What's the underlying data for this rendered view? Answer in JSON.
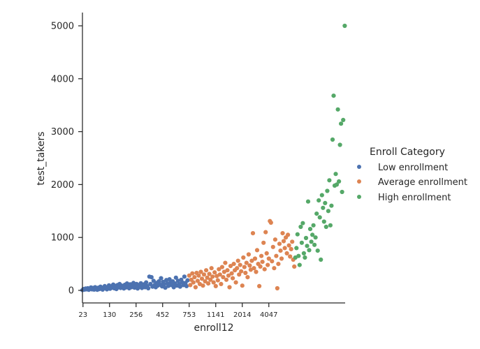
{
  "chart_data": {
    "type": "scatter",
    "title": "",
    "xlabel": "enroll12",
    "ylabel": "test_takers",
    "x_tick_labels": [
      "23",
      "130",
      "256",
      "452",
      "753",
      "1141",
      "2014",
      "4047"
    ],
    "y_ticks": [
      0,
      1000,
      2000,
      3000,
      4000,
      5000
    ],
    "ylim": [
      -200,
      5250
    ],
    "legend": {
      "title": "Enroll Category",
      "placement": "right"
    },
    "series": [
      {
        "name": "Low enrollment",
        "color": "#4c72b0",
        "points": [
          {
            "rank": 0,
            "y": 5
          },
          {
            "rank": 2,
            "y": 25
          },
          {
            "rank": 4,
            "y": 15
          },
          {
            "rank": 6,
            "y": 35
          },
          {
            "rank": 8,
            "y": 20
          },
          {
            "rank": 10,
            "y": 40
          },
          {
            "rank": 12,
            "y": 10
          },
          {
            "rank": 14,
            "y": 30
          },
          {
            "rank": 16,
            "y": 55
          },
          {
            "rank": 18,
            "y": 20
          },
          {
            "rank": 20,
            "y": 45
          },
          {
            "rank": 22,
            "y": 15
          },
          {
            "rank": 24,
            "y": 60
          },
          {
            "rank": 26,
            "y": 30
          },
          {
            "rank": 28,
            "y": 10
          },
          {
            "rank": 30,
            "y": 50
          },
          {
            "rank": 32,
            "y": 25
          },
          {
            "rank": 34,
            "y": 70
          },
          {
            "rank": 36,
            "y": 35
          },
          {
            "rank": 38,
            "y": 15
          },
          {
            "rank": 40,
            "y": 55
          },
          {
            "rank": 42,
            "y": 80
          },
          {
            "rank": 44,
            "y": 40
          },
          {
            "rank": 46,
            "y": 20
          },
          {
            "rank": 48,
            "y": 65
          },
          {
            "rank": 50,
            "y": 95
          },
          {
            "rank": 52,
            "y": 30
          },
          {
            "rank": 54,
            "y": 75
          },
          {
            "rank": 56,
            "y": 50
          },
          {
            "rank": 58,
            "y": 110
          },
          {
            "rank": 60,
            "y": 40
          },
          {
            "rank": 62,
            "y": 85
          },
          {
            "rank": 64,
            "y": 25
          },
          {
            "rank": 66,
            "y": 100
          },
          {
            "rank": 68,
            "y": 60
          },
          {
            "rank": 70,
            "y": 120
          },
          {
            "rank": 72,
            "y": 45
          },
          {
            "rank": 74,
            "y": 90
          },
          {
            "rank": 76,
            "y": 70
          },
          {
            "rank": 78,
            "y": 35
          },
          {
            "rank": 80,
            "y": 105
          },
          {
            "rank": 82,
            "y": 55
          },
          {
            "rank": 84,
            "y": 130
          },
          {
            "rank": 86,
            "y": 80
          },
          {
            "rank": 88,
            "y": 40
          },
          {
            "rank": 90,
            "y": 115
          },
          {
            "rank": 92,
            "y": 60
          },
          {
            "rank": 94,
            "y": 95
          },
          {
            "rank": 96,
            "y": 140
          },
          {
            "rank": 98,
            "y": 50
          },
          {
            "rank": 100,
            "y": 85
          },
          {
            "rank": 102,
            "y": 120
          },
          {
            "rank": 104,
            "y": 35
          },
          {
            "rank": 106,
            "y": 100
          },
          {
            "rank": 108,
            "y": 70
          },
          {
            "rank": 110,
            "y": 135
          },
          {
            "rank": 112,
            "y": 45
          },
          {
            "rank": 114,
            "y": 90
          },
          {
            "rank": 116,
            "y": 115
          },
          {
            "rank": 118,
            "y": 60
          },
          {
            "rank": 120,
            "y": 150
          },
          {
            "rank": 122,
            "y": 80
          },
          {
            "rank": 124,
            "y": 40
          },
          {
            "rank": 126,
            "y": 260
          },
          {
            "rank": 128,
            "y": 120
          },
          {
            "rank": 130,
            "y": 250
          },
          {
            "rank": 132,
            "y": 70
          },
          {
            "rank": 134,
            "y": 180
          },
          {
            "rank": 136,
            "y": 100
          },
          {
            "rank": 138,
            "y": 60
          },
          {
            "rank": 140,
            "y": 140
          },
          {
            "rank": 142,
            "y": 90
          },
          {
            "rank": 144,
            "y": 170
          },
          {
            "rank": 146,
            "y": 110
          },
          {
            "rank": 148,
            "y": 230
          },
          {
            "rank": 150,
            "y": 75
          },
          {
            "rank": 152,
            "y": 160
          },
          {
            "rank": 154,
            "y": 120
          },
          {
            "rank": 156,
            "y": 50
          },
          {
            "rank": 158,
            "y": 195
          },
          {
            "rank": 160,
            "y": 130
          },
          {
            "rank": 162,
            "y": 85
          },
          {
            "rank": 164,
            "y": 210
          },
          {
            "rank": 166,
            "y": 150
          },
          {
            "rank": 168,
            "y": 100
          },
          {
            "rank": 170,
            "y": 170
          },
          {
            "rank": 172,
            "y": 60
          },
          {
            "rank": 174,
            "y": 130
          },
          {
            "rank": 176,
            "y": 240
          },
          {
            "rank": 178,
            "y": 90
          },
          {
            "rank": 180,
            "y": 180
          },
          {
            "rank": 182,
            "y": 120
          },
          {
            "rank": 184,
            "y": 70
          },
          {
            "rank": 186,
            "y": 200
          },
          {
            "rank": 188,
            "y": 150
          },
          {
            "rank": 190,
            "y": 100
          },
          {
            "rank": 192,
            "y": 260
          },
          {
            "rank": 194,
            "y": 140
          },
          {
            "rank": 196,
            "y": 80
          },
          {
            "rank": 198,
            "y": 190
          }
        ]
      },
      {
        "name": "Average enrollment",
        "color": "#dd8452",
        "points": [
          {
            "rank": 201,
            "y": 280
          },
          {
            "rank": 203,
            "y": 100
          },
          {
            "rank": 205,
            "y": 200
          },
          {
            "rank": 207,
            "y": 320
          },
          {
            "rank": 209,
            "y": 150
          },
          {
            "rank": 211,
            "y": 250
          },
          {
            "rank": 213,
            "y": 60
          },
          {
            "rank": 215,
            "y": 330
          },
          {
            "rank": 217,
            "y": 180
          },
          {
            "rank": 219,
            "y": 280
          },
          {
            "rank": 221,
            "y": 120
          },
          {
            "rank": 223,
            "y": 350
          },
          {
            "rank": 225,
            "y": 220
          },
          {
            "rank": 227,
            "y": 90
          },
          {
            "rank": 229,
            "y": 300
          },
          {
            "rank": 231,
            "y": 170
          },
          {
            "rank": 233,
            "y": 380
          },
          {
            "rank": 235,
            "y": 240
          },
          {
            "rank": 237,
            "y": 130
          },
          {
            "rank": 239,
            "y": 310
          },
          {
            "rank": 241,
            "y": 200
          },
          {
            "rank": 243,
            "y": 420
          },
          {
            "rank": 245,
            "y": 260
          },
          {
            "rank": 247,
            "y": 150
          },
          {
            "rank": 249,
            "y": 340
          },
          {
            "rank": 251,
            "y": 80
          },
          {
            "rank": 253,
            "y": 270
          },
          {
            "rank": 255,
            "y": 190
          },
          {
            "rank": 257,
            "y": 400
          },
          {
            "rank": 259,
            "y": 300
          },
          {
            "rank": 261,
            "y": 120
          },
          {
            "rank": 263,
            "y": 440
          },
          {
            "rank": 265,
            "y": 250
          },
          {
            "rank": 267,
            "y": 350
          },
          {
            "rank": 269,
            "y": 520
          },
          {
            "rank": 271,
            "y": 200
          },
          {
            "rank": 273,
            "y": 380
          },
          {
            "rank": 275,
            "y": 280
          },
          {
            "rank": 277,
            "y": 60
          },
          {
            "rank": 279,
            "y": 460
          },
          {
            "rank": 281,
            "y": 320
          },
          {
            "rank": 283,
            "y": 230
          },
          {
            "rank": 285,
            "y": 500
          },
          {
            "rank": 287,
            "y": 380
          },
          {
            "rank": 289,
            "y": 150
          },
          {
            "rank": 291,
            "y": 420
          },
          {
            "rank": 293,
            "y": 560
          },
          {
            "rank": 295,
            "y": 300
          },
          {
            "rank": 297,
            "y": 480
          },
          {
            "rank": 299,
            "y": 360
          },
          {
            "rank": 301,
            "y": 90
          },
          {
            "rank": 303,
            "y": 620
          },
          {
            "rank": 305,
            "y": 440
          },
          {
            "rank": 307,
            "y": 330
          },
          {
            "rank": 309,
            "y": 520
          },
          {
            "rank": 311,
            "y": 250
          },
          {
            "rank": 313,
            "y": 680
          },
          {
            "rank": 315,
            "y": 470
          },
          {
            "rank": 317,
            "y": 390
          },
          {
            "rank": 319,
            "y": 560
          },
          {
            "rank": 321,
            "y": 1080
          },
          {
            "rank": 323,
            "y": 420
          },
          {
            "rank": 325,
            "y": 600
          },
          {
            "rank": 327,
            "y": 350
          },
          {
            "rank": 329,
            "y": 760
          },
          {
            "rank": 331,
            "y": 500
          },
          {
            "rank": 333,
            "y": 80
          },
          {
            "rank": 335,
            "y": 450
          },
          {
            "rank": 337,
            "y": 650
          },
          {
            "rank": 339,
            "y": 540
          },
          {
            "rank": 341,
            "y": 900
          },
          {
            "rank": 343,
            "y": 400
          },
          {
            "rank": 345,
            "y": 1100
          },
          {
            "rank": 347,
            "y": 700
          },
          {
            "rank": 349,
            "y": 480
          },
          {
            "rank": 351,
            "y": 600
          },
          {
            "rank": 353,
            "y": 1310
          },
          {
            "rank": 355,
            "y": 1280
          },
          {
            "rank": 357,
            "y": 550
          },
          {
            "rank": 359,
            "y": 820
          },
          {
            "rank": 361,
            "y": 420
          },
          {
            "rank": 363,
            "y": 960
          },
          {
            "rank": 365,
            "y": 650
          },
          {
            "rank": 367,
            "y": 40
          },
          {
            "rank": 369,
            "y": 500
          },
          {
            "rank": 371,
            "y": 880
          },
          {
            "rank": 373,
            "y": 750
          },
          {
            "rank": 375,
            "y": 600
          },
          {
            "rank": 377,
            "y": 1080
          },
          {
            "rank": 379,
            "y": 930
          },
          {
            "rank": 381,
            "y": 800
          },
          {
            "rank": 383,
            "y": 1000
          },
          {
            "rank": 385,
            "y": 700
          },
          {
            "rank": 387,
            "y": 1050
          },
          {
            "rank": 389,
            "y": 850
          },
          {
            "rank": 391,
            "y": 640
          },
          {
            "rank": 393,
            "y": 780
          },
          {
            "rank": 395,
            "y": 920
          },
          {
            "rank": 397,
            "y": 580
          },
          {
            "rank": 399,
            "y": 450
          }
        ]
      },
      {
        "name": "High enrollment",
        "color": "#55a868",
        "points": [
          {
            "rank": 401,
            "y": 620
          },
          {
            "rank": 403,
            "y": 800
          },
          {
            "rank": 405,
            "y": 1060
          },
          {
            "rank": 407,
            "y": 650
          },
          {
            "rank": 409,
            "y": 480
          },
          {
            "rank": 411,
            "y": 1200
          },
          {
            "rank": 413,
            "y": 900
          },
          {
            "rank": 415,
            "y": 1270
          },
          {
            "rank": 417,
            "y": 700
          },
          {
            "rank": 419,
            "y": 620
          },
          {
            "rank": 421,
            "y": 990
          },
          {
            "rank": 423,
            "y": 840
          },
          {
            "rank": 425,
            "y": 1680
          },
          {
            "rank": 427,
            "y": 760
          },
          {
            "rank": 429,
            "y": 1160
          },
          {
            "rank": 431,
            "y": 920
          },
          {
            "rank": 433,
            "y": 1050
          },
          {
            "rank": 435,
            "y": 1230
          },
          {
            "rank": 437,
            "y": 860
          },
          {
            "rank": 439,
            "y": 1000
          },
          {
            "rank": 441,
            "y": 1450
          },
          {
            "rank": 443,
            "y": 750
          },
          {
            "rank": 445,
            "y": 1700
          },
          {
            "rank": 447,
            "y": 1380
          },
          {
            "rank": 449,
            "y": 580
          },
          {
            "rank": 451,
            "y": 1800
          },
          {
            "rank": 453,
            "y": 1560
          },
          {
            "rank": 455,
            "y": 1300
          },
          {
            "rank": 457,
            "y": 1650
          },
          {
            "rank": 459,
            "y": 1200
          },
          {
            "rank": 461,
            "y": 1880
          },
          {
            "rank": 463,
            "y": 1500
          },
          {
            "rank": 465,
            "y": 2080
          },
          {
            "rank": 467,
            "y": 1230
          },
          {
            "rank": 469,
            "y": 1600
          },
          {
            "rank": 471,
            "y": 2850
          },
          {
            "rank": 473,
            "y": 3680
          },
          {
            "rank": 475,
            "y": 1980
          },
          {
            "rank": 477,
            "y": 2200
          },
          {
            "rank": 479,
            "y": 2000
          },
          {
            "rank": 481,
            "y": 3420
          },
          {
            "rank": 483,
            "y": 2060
          },
          {
            "rank": 485,
            "y": 2750
          },
          {
            "rank": 487,
            "y": 3150
          },
          {
            "rank": 489,
            "y": 1860
          },
          {
            "rank": 491,
            "y": 3220
          },
          {
            "rank": 494,
            "y": 5000
          }
        ]
      }
    ]
  }
}
